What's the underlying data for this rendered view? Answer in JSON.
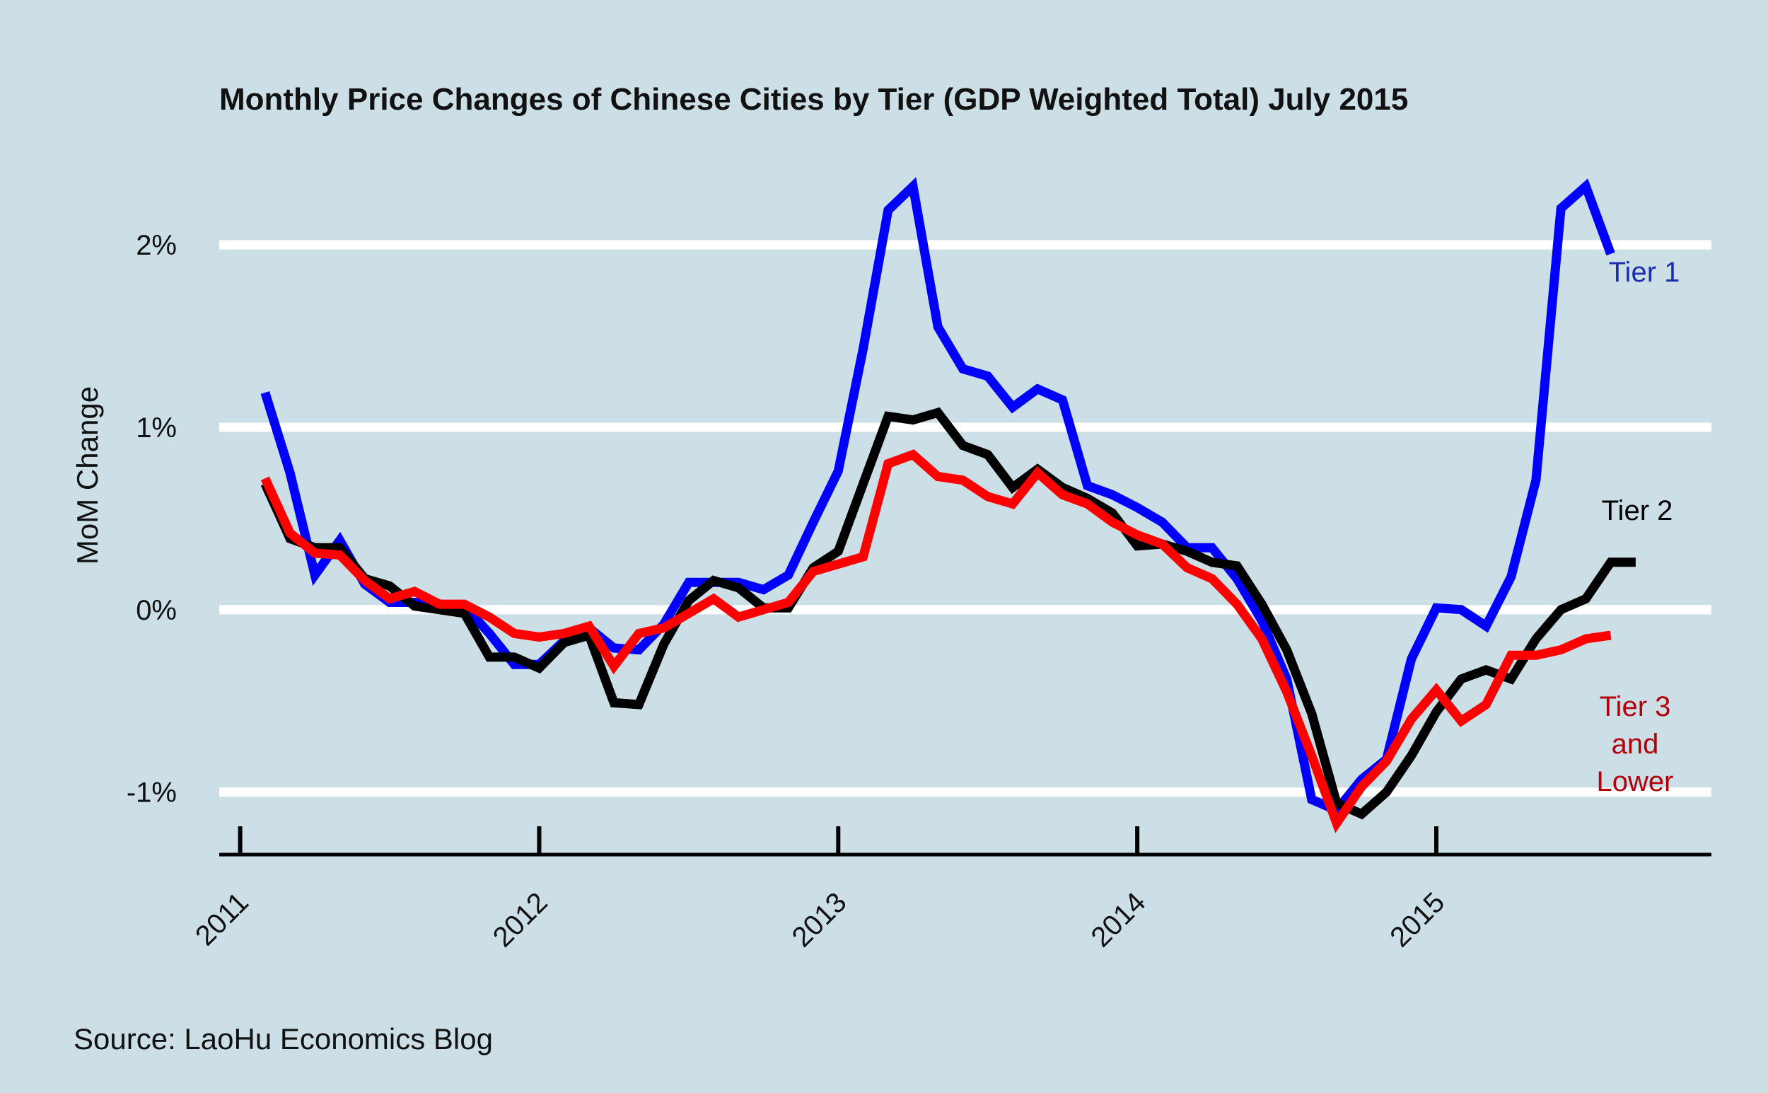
{
  "chart_data": {
    "type": "line",
    "title": "Monthly Price Changes of Chinese Cities by Tier (GDP Weighted Total) July 2015",
    "xlabel": "",
    "ylabel": "MoM Change",
    "source": "Source: LaoHu Economics Blog",
    "ylim": [
      -1.35,
      2.45
    ],
    "yticks": [
      {
        "value": 2,
        "label": "2%"
      },
      {
        "value": 1,
        "label": "1%"
      },
      {
        "value": 0,
        "label": "0%"
      },
      {
        "value": -1,
        "label": "-1%"
      }
    ],
    "xlim": [
      2010.93,
      2015.92
    ],
    "xticks": [
      {
        "value": 2011,
        "label": "2011"
      },
      {
        "value": 2012,
        "label": "2012"
      },
      {
        "value": 2013,
        "label": "2013"
      },
      {
        "value": 2014,
        "label": "2014"
      },
      {
        "value": 2015,
        "label": "2015"
      }
    ],
    "x_start": 2011.0833,
    "x_step": 0.0833333,
    "grid": "horizontal",
    "series": [
      {
        "name": "Tier 1",
        "label_lines": [
          "Tier 1"
        ],
        "color": "#0000ff",
        "label_color": "#1a2fae",
        "values": [
          1.19,
          0.75,
          0.19,
          0.38,
          0.14,
          0.04,
          0.04,
          0.03,
          0.02,
          -0.13,
          -0.3,
          -0.3,
          -0.17,
          -0.1,
          -0.21,
          -0.22,
          -0.08,
          0.15,
          0.15,
          0.15,
          0.11,
          0.19,
          0.48,
          0.76,
          1.43,
          2.19,
          2.32,
          1.55,
          1.32,
          1.28,
          1.11,
          1.21,
          1.15,
          0.68,
          0.63,
          0.56,
          0.48,
          0.34,
          0.34,
          0.17,
          -0.06,
          -0.38,
          -1.04,
          -1.1,
          -0.93,
          -0.82,
          -0.27,
          0.01,
          0.0,
          -0.09,
          0.18,
          0.71,
          2.2,
          2.32,
          1.95
        ]
      },
      {
        "name": "Tier 2",
        "label_lines": [
          "Tier 2"
        ],
        "color": "#000000",
        "label_color": "#000000",
        "values": [
          0.69,
          0.39,
          0.34,
          0.34,
          0.17,
          0.13,
          0.02,
          0.0,
          -0.02,
          -0.26,
          -0.26,
          -0.32,
          -0.18,
          -0.14,
          -0.51,
          -0.52,
          -0.19,
          0.05,
          0.16,
          0.12,
          0.01,
          0.01,
          0.23,
          0.32,
          0.69,
          1.06,
          1.04,
          1.08,
          0.9,
          0.85,
          0.67,
          0.77,
          0.67,
          0.61,
          0.53,
          0.35,
          0.36,
          0.32,
          0.26,
          0.24,
          0.03,
          -0.22,
          -0.57,
          -1.06,
          -1.12,
          -1.0,
          -0.8,
          -0.56,
          -0.38,
          -0.33,
          -0.38,
          -0.16,
          0.0,
          0.06,
          0.26,
          0.26
        ]
      },
      {
        "name": "Tier 3 and Lower",
        "label_lines": [
          "Tier 3",
          "and",
          "Lower"
        ],
        "color": "#ff0000",
        "label_color": "#b3000b",
        "values": [
          0.72,
          0.42,
          0.31,
          0.3,
          0.16,
          0.06,
          0.1,
          0.03,
          0.03,
          -0.04,
          -0.13,
          -0.15,
          -0.13,
          -0.09,
          -0.31,
          -0.13,
          -0.1,
          -0.02,
          0.06,
          -0.04,
          0.0,
          0.04,
          0.21,
          0.25,
          0.29,
          0.8,
          0.85,
          0.73,
          0.71,
          0.62,
          0.58,
          0.75,
          0.63,
          0.58,
          0.48,
          0.41,
          0.36,
          0.23,
          0.17,
          0.03,
          -0.16,
          -0.45,
          -0.8,
          -1.17,
          -0.97,
          -0.83,
          -0.6,
          -0.44,
          -0.61,
          -0.52,
          -0.25,
          -0.25,
          -0.22,
          -0.16,
          -0.14
        ]
      }
    ]
  }
}
